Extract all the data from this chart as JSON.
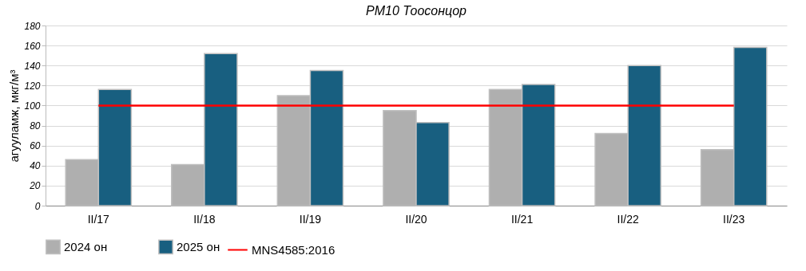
{
  "chart_data": {
    "type": "bar",
    "title": "PM10 Тоосонцор",
    "ylabel": "агууламж, мкг/м³",
    "categories": [
      "II/17",
      "II/18",
      "II/19",
      "II/20",
      "II/21",
      "II/22",
      "II/23"
    ],
    "series": [
      {
        "name": "2024 он",
        "color": "#afafaf",
        "values": [
          46,
          41,
          110,
          95,
          116,
          72,
          56
        ]
      },
      {
        "name": "2025 он",
        "color": "#185f80",
        "values": [
          116,
          152,
          135,
          83,
          121,
          140,
          158
        ]
      },
      {
        "name": "MNS4585:2016",
        "type": "line",
        "color": "#ff0000",
        "values": [
          100,
          100,
          100,
          100,
          100,
          100,
          100
        ]
      }
    ],
    "ylim": [
      0,
      180
    ],
    "yticks": [
      0,
      20,
      40,
      60,
      80,
      100,
      120,
      140,
      160,
      180
    ],
    "grid": "y",
    "legend": "bottom"
  }
}
